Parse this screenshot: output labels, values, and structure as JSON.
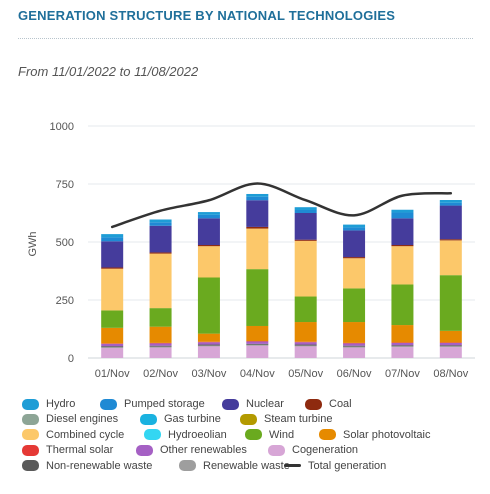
{
  "header": {
    "title": "GENERATION STRUCTURE BY NATIONAL TECHNOLOGIES",
    "date_range": "From 11/01/2022 to 11/08/2022"
  },
  "chart_data": {
    "type": "bar",
    "stacked": true,
    "ylabel": "GWh",
    "ylim": [
      0,
      1000
    ],
    "yticks": [
      0,
      250,
      500,
      750,
      1000
    ],
    "grid": true,
    "legend_position": "bottom",
    "categories": [
      "01/Nov",
      "02/Nov",
      "03/Nov",
      "04/Nov",
      "05/Nov",
      "06/Nov",
      "07/Nov",
      "08/Nov"
    ],
    "series": [
      {
        "name": "Cogeneration",
        "color": "#d7a6d6",
        "values": [
          43,
          45,
          50,
          53,
          50,
          45,
          47,
          47
        ]
      },
      {
        "name": "Renewable waste",
        "color": "#9e9e9e",
        "values": [
          4,
          4,
          4,
          4,
          4,
          4,
          4,
          4
        ]
      },
      {
        "name": "Non-renewable waste",
        "color": "#5a5a5a",
        "values": [
          4,
          4,
          4,
          4,
          4,
          4,
          4,
          4
        ]
      },
      {
        "name": "Other renewables",
        "color": "#a560c4",
        "values": [
          10,
          10,
          10,
          10,
          10,
          10,
          10,
          10
        ]
      },
      {
        "name": "Thermal solar",
        "color": "#e53935",
        "values": [
          2,
          2,
          2,
          2,
          2,
          2,
          2,
          2
        ]
      },
      {
        "name": "Diesel engines",
        "color": "#8da596",
        "values": [
          0,
          0,
          0,
          0,
          0,
          0,
          0,
          0
        ]
      },
      {
        "name": "Gas turbine",
        "color": "#1ab2e0",
        "values": [
          0,
          0,
          0,
          0,
          0,
          0,
          0,
          0
        ]
      },
      {
        "name": "Steam turbine",
        "color": "#b39a00",
        "values": [
          0,
          0,
          0,
          0,
          0,
          0,
          0,
          0
        ]
      },
      {
        "name": "Solar photovoltaic",
        "color": "#e68a00",
        "values": [
          67,
          70,
          35,
          65,
          85,
          90,
          75,
          50
        ]
      },
      {
        "name": "Wind",
        "color": "#6aaa1f",
        "values": [
          75,
          80,
          242,
          245,
          110,
          145,
          175,
          240
        ]
      },
      {
        "name": "Hydroeolian",
        "color": "#33d6f2",
        "values": [
          0,
          0,
          0,
          0,
          0,
          0,
          0,
          0
        ]
      },
      {
        "name": "Combined cycle",
        "color": "#fcc86a",
        "values": [
          180,
          235,
          135,
          175,
          240,
          130,
          165,
          150
        ]
      },
      {
        "name": "Coal",
        "color": "#8e2a0f",
        "values": [
          5,
          5,
          5,
          7,
          5,
          5,
          5,
          5
        ]
      },
      {
        "name": "Nuclear",
        "color": "#453c9c",
        "values": [
          113,
          115,
          115,
          115,
          115,
          115,
          115,
          145
        ]
      },
      {
        "name": "Pumped storage",
        "color": "#1f8ad4",
        "values": [
          17,
          15,
          15,
          15,
          13,
          13,
          25,
          12
        ]
      },
      {
        "name": "Hydro",
        "color": "#1e9dd6",
        "values": [
          14,
          12,
          12,
          12,
          12,
          12,
          12,
          12
        ]
      }
    ],
    "total_generation": {
      "name": "Total generation",
      "color": "#333333",
      "values": [
        565,
        635,
        680,
        752,
        680,
        615,
        700,
        710
      ]
    }
  },
  "legend": [
    {
      "label": "Hydro",
      "color": "#1e9dd6",
      "kind": "swatch"
    },
    {
      "label": "Pumped storage",
      "color": "#1f8ad4",
      "kind": "swatch"
    },
    {
      "label": "Nuclear",
      "color": "#453c9c",
      "kind": "swatch"
    },
    {
      "label": "Coal",
      "color": "#8e2a0f",
      "kind": "swatch"
    },
    {
      "label": "Diesel engines",
      "color": "#8da596",
      "kind": "swatch"
    },
    {
      "label": "Gas turbine",
      "color": "#1ab2e0",
      "kind": "swatch"
    },
    {
      "label": "Steam turbine",
      "color": "#b39a00",
      "kind": "swatch"
    },
    {
      "label": "Combined cycle",
      "color": "#fcc86a",
      "kind": "swatch"
    },
    {
      "label": "Hydroeolian",
      "color": "#33d6f2",
      "kind": "swatch"
    },
    {
      "label": "Wind",
      "color": "#6aaa1f",
      "kind": "swatch"
    },
    {
      "label": "Solar photovoltaic",
      "color": "#e68a00",
      "kind": "swatch"
    },
    {
      "label": "Thermal solar",
      "color": "#e53935",
      "kind": "swatch"
    },
    {
      "label": "Other renewables",
      "color": "#a560c4",
      "kind": "swatch"
    },
    {
      "label": "Cogeneration",
      "color": "#d7a6d6",
      "kind": "swatch"
    },
    {
      "label": "Non-renewable waste",
      "color": "#5a5a5a",
      "kind": "swatch"
    },
    {
      "label": "Renewable waste",
      "color": "#9e9e9e",
      "kind": "swatch"
    },
    {
      "label": "Total generation",
      "color": "#333333",
      "kind": "line"
    }
  ]
}
